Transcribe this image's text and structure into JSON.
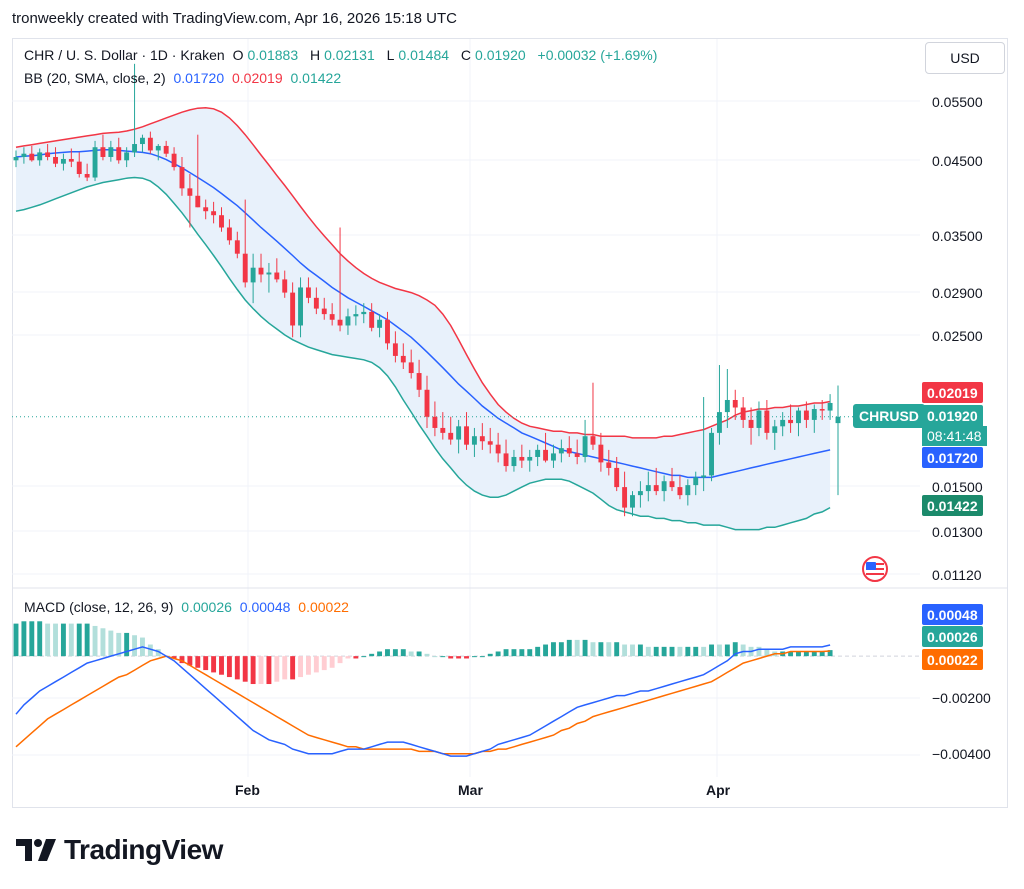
{
  "header": {
    "caption": "tronweekly created with TradingView.com, Apr 16, 2026 15:18 UTC"
  },
  "legend": {
    "symbol": "CHR / U. S. Dollar · 1D · Kraken",
    "o_label": "O",
    "o": "0.01883",
    "h_label": "H",
    "h": "0.02131",
    "l_label": "L",
    "l": "0.01484",
    "c_label": "C",
    "c": "0.01920",
    "change": "+0.00032 (+1.69%)",
    "bb_title": "BB (20, SMA, close, 2)",
    "bb_basis": "0.01720",
    "bb_upper": "0.02019",
    "bb_lower": "0.01422",
    "macd_title": "MACD (close, 12, 26, 9)",
    "macd_hist": "0.00026",
    "macd_line": "0.00048",
    "macd_signal": "0.00022"
  },
  "currency_button": "USD",
  "price_axis": [
    "0.05500",
    "0.04500",
    "0.03500",
    "0.02900",
    "0.02500",
    "0.01500",
    "0.01300",
    "0.01120"
  ],
  "macd_axis": [
    "−0.00200",
    "−0.00400"
  ],
  "price_tags": {
    "upper": "0.02019",
    "symbol": "CHRUSD",
    "last": "0.01920",
    "countdown": "08:41:48",
    "basis": "0.01720",
    "lower": "0.01422"
  },
  "macd_tags": {
    "macd": "0.00048",
    "hist": "0.00026",
    "signal": "0.00022"
  },
  "x_axis": [
    "Feb",
    "Mar",
    "Apr"
  ],
  "brand": {
    "name": "TradingView"
  },
  "colors": {
    "up": "#26a69a",
    "down": "#f23645",
    "basis": "#2962ff",
    "upper": "#f23645",
    "lower": "#26a69a",
    "band_fill": "#e8f1fb",
    "macd": "#2962ff",
    "signal": "#ff6d00",
    "hist_up_strong": "#26a69a",
    "hist_up_weak": "#b2dfdb",
    "hist_down_strong": "#f23645",
    "hist_down_weak": "#ffcdd2"
  },
  "chart_data": {
    "type": "candlestick",
    "symbol": "CHRUSD",
    "interval": "1D",
    "exchange": "Kraken",
    "price_scale": "log",
    "ylim": [
      0.0108,
      0.066
    ],
    "x_ticks": [
      {
        "label": "Feb",
        "index": 33
      },
      {
        "label": "Mar",
        "index": 61
      },
      {
        "label": "Apr",
        "index": 92
      }
    ],
    "ohlc": [
      [
        0.045,
        0.0465,
        0.044,
        0.0455
      ],
      [
        0.0455,
        0.047,
        0.0445,
        0.046
      ],
      [
        0.046,
        0.0472,
        0.0448,
        0.045
      ],
      [
        0.045,
        0.0468,
        0.0442,
        0.0462
      ],
      [
        0.0462,
        0.0475,
        0.045,
        0.0455
      ],
      [
        0.0455,
        0.047,
        0.044,
        0.0445
      ],
      [
        0.0445,
        0.046,
        0.0435,
        0.0452
      ],
      [
        0.0452,
        0.0468,
        0.044,
        0.0448
      ],
      [
        0.0448,
        0.0462,
        0.0425,
        0.043
      ],
      [
        0.043,
        0.0445,
        0.042,
        0.0425
      ],
      [
        0.0425,
        0.048,
        0.042,
        0.047
      ],
      [
        0.047,
        0.049,
        0.045,
        0.0455
      ],
      [
        0.0455,
        0.048,
        0.0448,
        0.047
      ],
      [
        0.047,
        0.0485,
        0.0445,
        0.045
      ],
      [
        0.045,
        0.047,
        0.044,
        0.0462
      ],
      [
        0.0462,
        0.062,
        0.0455,
        0.0475
      ],
      [
        0.0475,
        0.049,
        0.0462,
        0.0485
      ],
      [
        0.0485,
        0.0495,
        0.046,
        0.0465
      ],
      [
        0.0465,
        0.0475,
        0.045,
        0.0472
      ],
      [
        0.0472,
        0.048,
        0.0455,
        0.046
      ],
      [
        0.046,
        0.047,
        0.0435,
        0.044
      ],
      [
        0.044,
        0.0455,
        0.04,
        0.041
      ],
      [
        0.041,
        0.043,
        0.036,
        0.04
      ],
      [
        0.04,
        0.049,
        0.0385,
        0.0385
      ],
      [
        0.0385,
        0.0395,
        0.037,
        0.038
      ],
      [
        0.038,
        0.0392,
        0.0365,
        0.0375
      ],
      [
        0.0375,
        0.0385,
        0.0355,
        0.036
      ],
      [
        0.036,
        0.037,
        0.034,
        0.0345
      ],
      [
        0.0345,
        0.0355,
        0.0325,
        0.033
      ],
      [
        0.033,
        0.0395,
        0.0295,
        0.03
      ],
      [
        0.03,
        0.033,
        0.028,
        0.0315
      ],
      [
        0.0315,
        0.033,
        0.03,
        0.0308
      ],
      [
        0.0308,
        0.032,
        0.029,
        0.031
      ],
      [
        0.031,
        0.0325,
        0.03,
        0.0303
      ],
      [
        0.0303,
        0.0312,
        0.0285,
        0.029
      ],
      [
        0.029,
        0.03,
        0.025,
        0.026
      ],
      [
        0.026,
        0.0305,
        0.025,
        0.0295
      ],
      [
        0.0295,
        0.0305,
        0.028,
        0.0285
      ],
      [
        0.0285,
        0.0295,
        0.027,
        0.0275
      ],
      [
        0.0275,
        0.0285,
        0.0265,
        0.027
      ],
      [
        0.027,
        0.028,
        0.026,
        0.0265
      ],
      [
        0.0265,
        0.036,
        0.0255,
        0.026
      ],
      [
        0.026,
        0.0275,
        0.0252,
        0.0268
      ],
      [
        0.0268,
        0.0278,
        0.026,
        0.027
      ],
      [
        0.027,
        0.028,
        0.0262,
        0.0272
      ],
      [
        0.0272,
        0.028,
        0.0255,
        0.0258
      ],
      [
        0.0258,
        0.027,
        0.025,
        0.0265
      ],
      [
        0.0265,
        0.0272,
        0.024,
        0.0245
      ],
      [
        0.0245,
        0.0255,
        0.023,
        0.0235
      ],
      [
        0.0235,
        0.0245,
        0.0225,
        0.023
      ],
      [
        0.023,
        0.024,
        0.0218,
        0.0222
      ],
      [
        0.0222,
        0.0232,
        0.0205,
        0.021
      ],
      [
        0.021,
        0.022,
        0.0185,
        0.0192
      ],
      [
        0.0192,
        0.0202,
        0.018,
        0.0185
      ],
      [
        0.0185,
        0.0195,
        0.0178,
        0.0182
      ],
      [
        0.0182,
        0.0192,
        0.0175,
        0.0178
      ],
      [
        0.0178,
        0.019,
        0.017,
        0.0186
      ],
      [
        0.0186,
        0.0195,
        0.0172,
        0.0175
      ],
      [
        0.0175,
        0.0185,
        0.0168,
        0.018
      ],
      [
        0.018,
        0.0188,
        0.0172,
        0.0177
      ],
      [
        0.0177,
        0.0185,
        0.017,
        0.0175
      ],
      [
        0.0175,
        0.0182,
        0.0165,
        0.017
      ],
      [
        0.017,
        0.0178,
        0.016,
        0.0163
      ],
      [
        0.0163,
        0.0172,
        0.016,
        0.0168
      ],
      [
        0.0168,
        0.0175,
        0.0162,
        0.0166
      ],
      [
        0.0166,
        0.0172,
        0.016,
        0.0168
      ],
      [
        0.0168,
        0.0175,
        0.0163,
        0.0172
      ],
      [
        0.0172,
        0.0182,
        0.0165,
        0.0166
      ],
      [
        0.0166,
        0.0175,
        0.0162,
        0.017
      ],
      [
        0.017,
        0.0178,
        0.0165,
        0.0173
      ],
      [
        0.0173,
        0.018,
        0.0168,
        0.017
      ],
      [
        0.017,
        0.0178,
        0.0164,
        0.0168
      ],
      [
        0.0168,
        0.019,
        0.0165,
        0.018
      ],
      [
        0.018,
        0.0215,
        0.0172,
        0.0175
      ],
      [
        0.0175,
        0.0182,
        0.016,
        0.0165
      ],
      [
        0.0165,
        0.0172,
        0.0158,
        0.0162
      ],
      [
        0.0162,
        0.0168,
        0.015,
        0.0152
      ],
      [
        0.0152,
        0.016,
        0.0138,
        0.0142
      ],
      [
        0.0142,
        0.015,
        0.0138,
        0.0148
      ],
      [
        0.0148,
        0.0155,
        0.0142,
        0.015
      ],
      [
        0.015,
        0.016,
        0.0145,
        0.0153
      ],
      [
        0.0153,
        0.0162,
        0.0148,
        0.015
      ],
      [
        0.015,
        0.0158,
        0.0145,
        0.0155
      ],
      [
        0.0155,
        0.0162,
        0.015,
        0.0152
      ],
      [
        0.0152,
        0.0158,
        0.0146,
        0.0148
      ],
      [
        0.0148,
        0.0156,
        0.0143,
        0.0153
      ],
      [
        0.0153,
        0.016,
        0.0148,
        0.0157
      ],
      [
        0.0157,
        0.0205,
        0.015,
        0.0158
      ],
      [
        0.0158,
        0.0185,
        0.0155,
        0.0182
      ],
      [
        0.0182,
        0.0228,
        0.0175,
        0.0195
      ],
      [
        0.0195,
        0.0225,
        0.0185,
        0.0203
      ],
      [
        0.0203,
        0.021,
        0.019,
        0.0198
      ],
      [
        0.0198,
        0.0205,
        0.0185,
        0.019
      ],
      [
        0.019,
        0.0198,
        0.0175,
        0.0185
      ],
      [
        0.0185,
        0.0202,
        0.018,
        0.0196
      ],
      [
        0.0196,
        0.0203,
        0.0178,
        0.0182
      ],
      [
        0.0182,
        0.019,
        0.0172,
        0.0186
      ],
      [
        0.0186,
        0.0195,
        0.018,
        0.019
      ],
      [
        0.019,
        0.02,
        0.0182,
        0.0188
      ],
      [
        0.0188,
        0.0198,
        0.018,
        0.0196
      ],
      [
        0.0196,
        0.0202,
        0.0185,
        0.019
      ],
      [
        0.019,
        0.02,
        0.0182,
        0.0197
      ],
      [
        0.0197,
        0.0203,
        0.019,
        0.0196
      ],
      [
        0.0196,
        0.0207,
        0.019,
        0.0201
      ],
      [
        0.0188,
        0.0213,
        0.0148,
        0.0192
      ]
    ],
    "bollinger": {
      "period": 20,
      "ma": "SMA",
      "stddev": 2,
      "basis": [
        0.0455,
        0.0456,
        0.0457,
        0.0458,
        0.046,
        0.0461,
        0.0462,
        0.0463,
        0.0463,
        0.0464,
        0.0465,
        0.0466,
        0.0466,
        0.0465,
        0.0464,
        0.0463,
        0.0462,
        0.046,
        0.0456,
        0.0451,
        0.0445,
        0.0439,
        0.0432,
        0.0425,
        0.0418,
        0.0411,
        0.0403,
        0.0395,
        0.0387,
        0.0378,
        0.0369,
        0.036,
        0.0352,
        0.0344,
        0.0336,
        0.0328,
        0.032,
        0.0313,
        0.0307,
        0.0301,
        0.0295,
        0.029,
        0.0285,
        0.0281,
        0.0277,
        0.0273,
        0.0269,
        0.0265,
        0.026,
        0.0255,
        0.025,
        0.0244,
        0.0238,
        0.0232,
        0.0226,
        0.022,
        0.0214,
        0.0209,
        0.0204,
        0.0199,
        0.0195,
        0.0191,
        0.0188,
        0.0185,
        0.0182,
        0.018,
        0.0178,
        0.0176,
        0.0174,
        0.0172,
        0.0171,
        0.017,
        0.0169,
        0.0168,
        0.0167,
        0.0166,
        0.0165,
        0.0164,
        0.0163,
        0.0162,
        0.0161,
        0.016,
        0.0159,
        0.0158,
        0.0158,
        0.0157,
        0.0157,
        0.0157,
        0.0157,
        0.0158,
        0.0159,
        0.016,
        0.0161,
        0.0162,
        0.0163,
        0.0164,
        0.0165,
        0.0166,
        0.0167,
        0.0168,
        0.0169,
        0.017,
        0.0171,
        0.0172
      ],
      "upper": [
        0.047,
        0.0472,
        0.0474,
        0.0476,
        0.0478,
        0.048,
        0.0482,
        0.0484,
        0.0486,
        0.0488,
        0.049,
        0.0492,
        0.0493,
        0.0494,
        0.0496,
        0.0499,
        0.0503,
        0.0508,
        0.0513,
        0.0518,
        0.0523,
        0.0528,
        0.0532,
        0.0535,
        0.0536,
        0.0534,
        0.0528,
        0.0518,
        0.0505,
        0.049,
        0.0474,
        0.0458,
        0.0443,
        0.0428,
        0.0414,
        0.04,
        0.0386,
        0.0373,
        0.0361,
        0.035,
        0.034,
        0.033,
        0.0322,
        0.0315,
        0.0309,
        0.0304,
        0.03,
        0.0297,
        0.0294,
        0.0292,
        0.029,
        0.0287,
        0.0283,
        0.0278,
        0.027,
        0.026,
        0.0248,
        0.0236,
        0.0225,
        0.0215,
        0.0207,
        0.02,
        0.0195,
        0.0191,
        0.0188,
        0.0186,
        0.0185,
        0.0184,
        0.0183,
        0.0183,
        0.0182,
        0.0182,
        0.0181,
        0.0181,
        0.018,
        0.018,
        0.018,
        0.018,
        0.0179,
        0.0179,
        0.0179,
        0.0179,
        0.018,
        0.018,
        0.0181,
        0.0182,
        0.0183,
        0.0184,
        0.0186,
        0.0188,
        0.019,
        0.0193,
        0.0195,
        0.0196,
        0.0197,
        0.0197,
        0.0198,
        0.0198,
        0.0199,
        0.0199,
        0.02,
        0.0201,
        0.0201,
        0.0202
      ],
      "lower": [
        0.038,
        0.0382,
        0.0385,
        0.0388,
        0.0392,
        0.0396,
        0.04,
        0.0404,
        0.0408,
        0.0412,
        0.0415,
        0.0418,
        0.042,
        0.0422,
        0.0424,
        0.0425,
        0.0424,
        0.042,
        0.0412,
        0.0402,
        0.039,
        0.0378,
        0.0365,
        0.0352,
        0.034,
        0.0328,
        0.0316,
        0.0304,
        0.0293,
        0.0283,
        0.0275,
        0.0268,
        0.0262,
        0.0257,
        0.0252,
        0.0248,
        0.0245,
        0.0242,
        0.024,
        0.0238,
        0.0236,
        0.0235,
        0.0234,
        0.0233,
        0.0232,
        0.023,
        0.0226,
        0.022,
        0.0212,
        0.0203,
        0.0195,
        0.0187,
        0.018,
        0.0173,
        0.0167,
        0.0162,
        0.0157,
        0.0153,
        0.015,
        0.0148,
        0.0147,
        0.0147,
        0.0148,
        0.015,
        0.0152,
        0.0154,
        0.0155,
        0.0156,
        0.0156,
        0.0156,
        0.0155,
        0.0153,
        0.0151,
        0.0149,
        0.0146,
        0.0143,
        0.0141,
        0.014,
        0.0139,
        0.0138,
        0.0138,
        0.0137,
        0.0137,
        0.0136,
        0.0136,
        0.0135,
        0.0135,
        0.0134,
        0.0134,
        0.0134,
        0.0133,
        0.0132,
        0.0132,
        0.0132,
        0.0132,
        0.0133,
        0.0133,
        0.0134,
        0.0135,
        0.0136,
        0.0137,
        0.0139,
        0.014,
        0.0142
      ]
    },
    "macd": {
      "fast": 12,
      "slow": 26,
      "signal_period": 9,
      "ylim": [
        -0.0049,
        0.0019
      ],
      "macd": [
        -0.0025,
        -0.0021,
        -0.0018,
        -0.0015,
        -0.0013,
        -0.0011,
        -0.0009,
        -0.0007,
        -0.0005,
        -0.0003,
        -0.0002,
        -0.0001,
        0.0,
        0.0001,
        0.0002,
        0.0003,
        0.0004,
        0.0003,
        0.0002,
        0.0,
        -0.0002,
        -0.0005,
        -0.0008,
        -0.0011,
        -0.0014,
        -0.0017,
        -0.002,
        -0.0023,
        -0.0026,
        -0.0029,
        -0.0032,
        -0.0034,
        -0.0036,
        -0.0037,
        -0.0038,
        -0.004,
        -0.0041,
        -0.0042,
        -0.0042,
        -0.0042,
        -0.0042,
        -0.0041,
        -0.004,
        -0.004,
        -0.004,
        -0.0039,
        -0.0038,
        -0.0037,
        -0.0037,
        -0.0037,
        -0.0038,
        -0.0039,
        -0.004,
        -0.0041,
        -0.0042,
        -0.0043,
        -0.0043,
        -0.0043,
        -0.0042,
        -0.0041,
        -0.004,
        -0.0038,
        -0.0037,
        -0.0036,
        -0.0035,
        -0.0034,
        -0.0032,
        -0.003,
        -0.0028,
        -0.0026,
        -0.0024,
        -0.0022,
        -0.0021,
        -0.002,
        -0.0019,
        -0.0018,
        -0.0017,
        -0.0017,
        -0.0016,
        -0.0015,
        -0.0015,
        -0.0014,
        -0.0013,
        -0.0012,
        -0.0011,
        -0.001,
        -0.0009,
        -0.0008,
        -0.0006,
        -0.0004,
        -0.0002,
        0.0001,
        0.0002,
        0.0002,
        0.0003,
        0.0003,
        0.0003,
        0.0003,
        0.0004,
        0.0004,
        0.0004,
        0.0004,
        0.0004,
        0.00048
      ],
      "signal": [
        -0.0039,
        -0.0036,
        -0.0033,
        -0.003,
        -0.0027,
        -0.0025,
        -0.0023,
        -0.0021,
        -0.0019,
        -0.0017,
        -0.0015,
        -0.0013,
        -0.0011,
        -0.0009,
        -0.0008,
        -0.0006,
        -0.0004,
        -0.0002,
        -0.0001,
        0.0,
        -0.0001,
        -0.0002,
        -0.0004,
        -0.0006,
        -0.0008,
        -0.001,
        -0.0012,
        -0.0014,
        -0.0016,
        -0.0018,
        -0.002,
        -0.0022,
        -0.0024,
        -0.0026,
        -0.0028,
        -0.003,
        -0.0032,
        -0.0034,
        -0.0035,
        -0.0036,
        -0.0037,
        -0.0038,
        -0.0039,
        -0.0039,
        -0.004,
        -0.004,
        -0.004,
        -0.004,
        -0.004,
        -0.004,
        -0.004,
        -0.0041,
        -0.0041,
        -0.0041,
        -0.0042,
        -0.0042,
        -0.0042,
        -0.0042,
        -0.0042,
        -0.0041,
        -0.0041,
        -0.004,
        -0.004,
        -0.0039,
        -0.0038,
        -0.0037,
        -0.0036,
        -0.0035,
        -0.0034,
        -0.0032,
        -0.0031,
        -0.0029,
        -0.0028,
        -0.0026,
        -0.0025,
        -0.0024,
        -0.0023,
        -0.0022,
        -0.0021,
        -0.002,
        -0.0019,
        -0.0018,
        -0.0017,
        -0.0016,
        -0.0015,
        -0.0014,
        -0.0013,
        -0.0012,
        -0.0011,
        -0.0009,
        -0.0007,
        -0.0005,
        -0.0003,
        -0.0002,
        -0.0001,
        0.0,
        0.0001,
        0.0001,
        0.0002,
        0.0002,
        0.0002,
        0.0002,
        0.0002,
        0.00022
      ]
    }
  }
}
